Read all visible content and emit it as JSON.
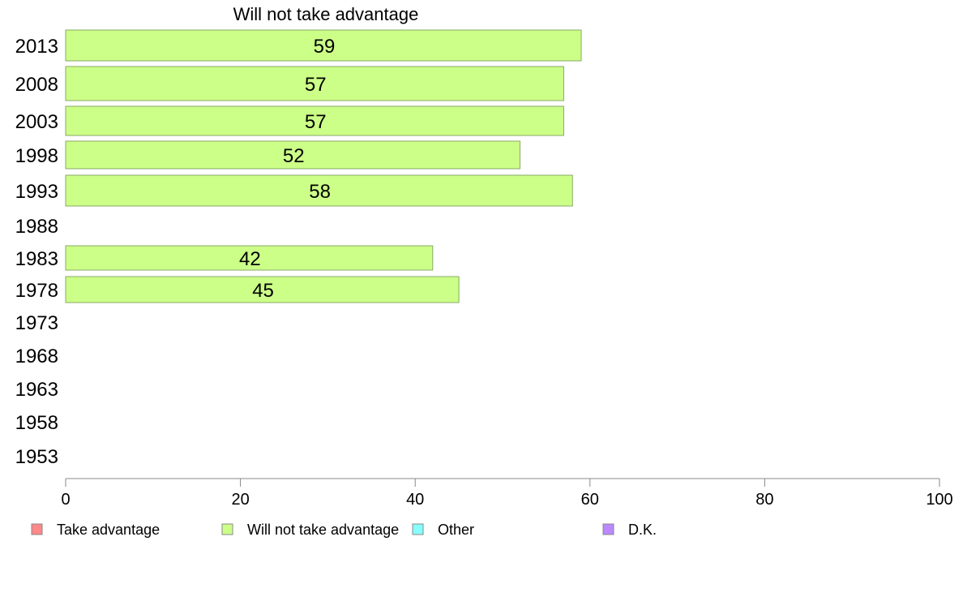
{
  "chart_data": {
    "type": "bar",
    "orientation": "horizontal",
    "title": "Will not take advantage",
    "categories": [
      "2013",
      "2008",
      "2003",
      "1998",
      "1993",
      "1988",
      "1983",
      "1978",
      "1973",
      "1968",
      "1963",
      "1958",
      "1953"
    ],
    "series": [
      {
        "name": "Will not take advantage",
        "color": "#ccff88",
        "values": [
          59,
          57,
          57,
          52,
          58,
          null,
          42,
          45,
          null,
          null,
          null,
          null,
          null
        ]
      }
    ],
    "xlim": [
      0,
      100
    ],
    "xticks": [
      0,
      20,
      40,
      60,
      80,
      100
    ],
    "grid": false,
    "legend_position": "bottom",
    "legend": [
      {
        "label": "Take advantage",
        "color": "#ff8888"
      },
      {
        "label": "Will not take advantage",
        "color": "#ccff88"
      },
      {
        "label": "Other",
        "color": "#88ffff"
      },
      {
        "label": "D.K.",
        "color": "#bb88ff"
      }
    ]
  }
}
